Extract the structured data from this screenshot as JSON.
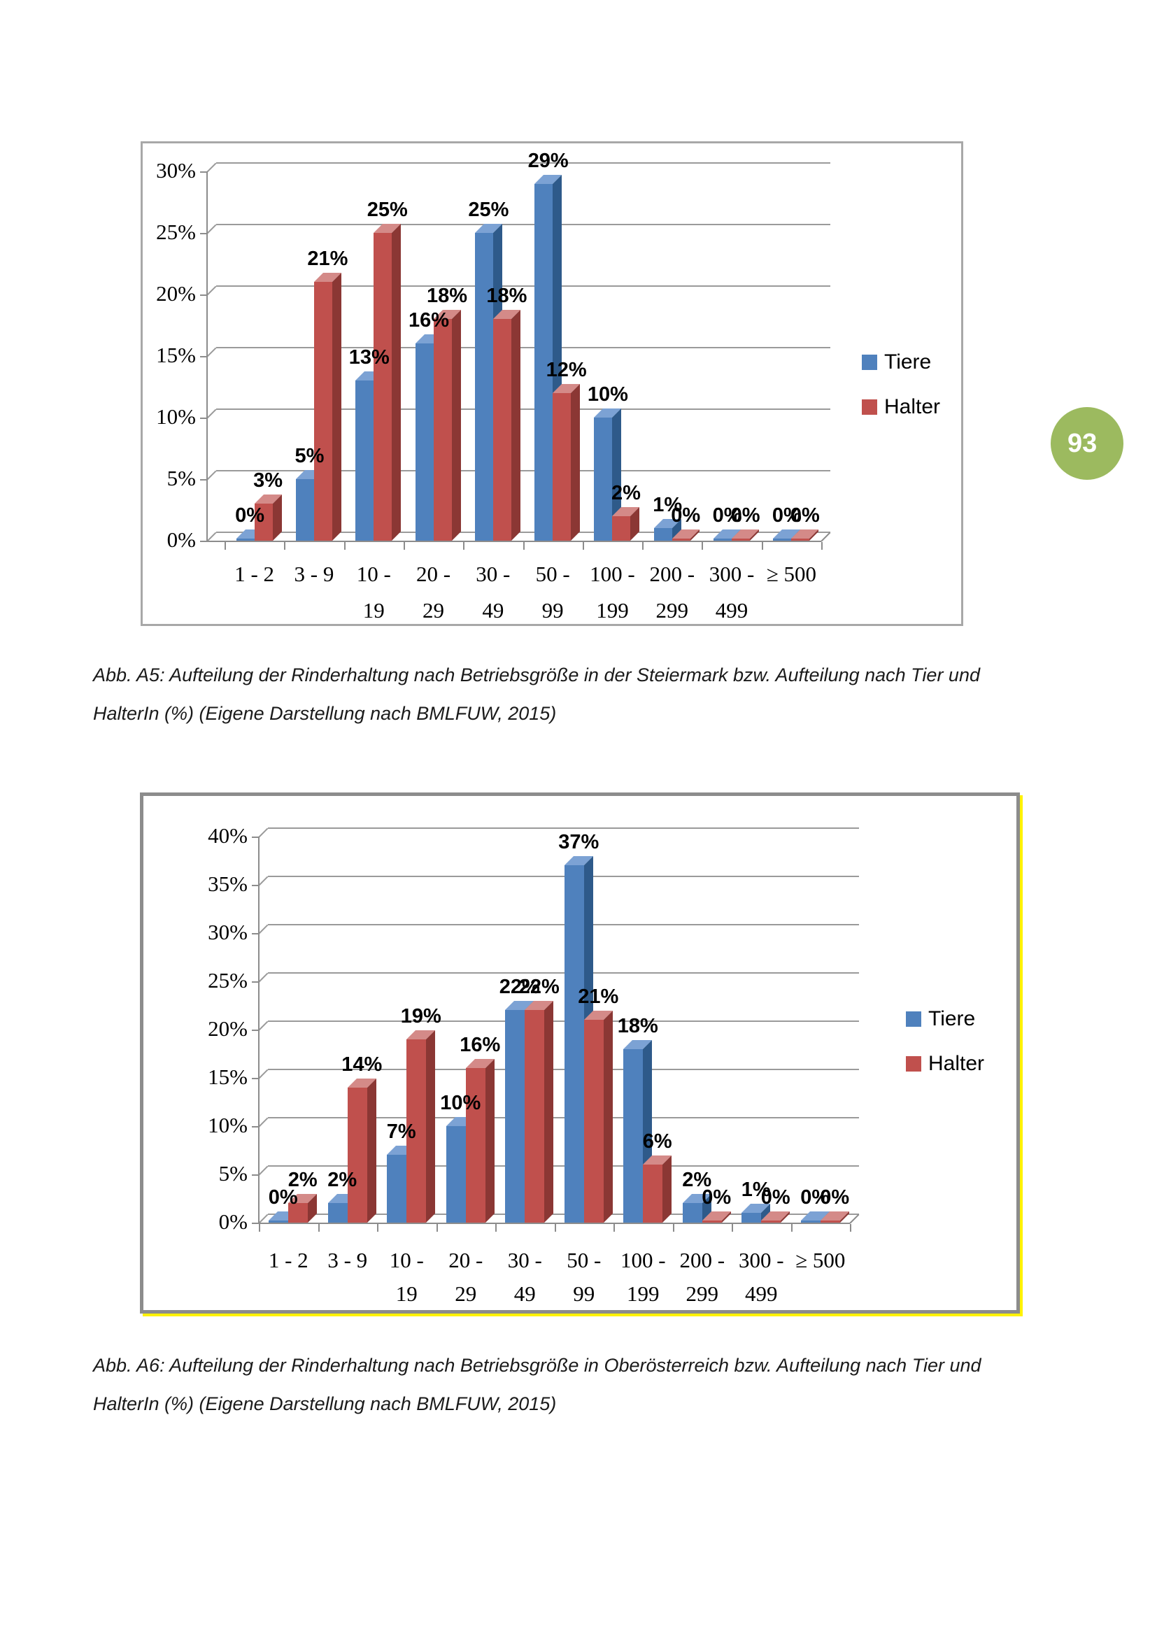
{
  "page": {
    "badge_number": "93"
  },
  "colors": {
    "tiere": "#4f81bd",
    "tiere_top": "#7ca2d4",
    "tiere_side": "#2e5a8a",
    "halter": "#c0504d",
    "halter_top": "#d48a88",
    "halter_side": "#8b3734",
    "gridline": "#9a9a9a",
    "axis": "#8c8c8c",
    "chart1_border": "#a8a8a8",
    "chart2_border": "#8c8c8c",
    "chart2_accent": "#fff200",
    "badge": "#9cba5f"
  },
  "chart_data": [
    {
      "type": "bar",
      "region": "Steiermark",
      "categories": [
        "1 - 2",
        "3 - 9",
        "10 - 19",
        "20 - 29",
        "30 - 49",
        "50 - 99",
        "100 - 199",
        "200 - 299",
        "300 - 499",
        "≥ 500"
      ],
      "categories_line1": [
        "1 - 2",
        "3 - 9",
        "10 -",
        "20 -",
        "30 -",
        "50 -",
        "100 -",
        "200 -",
        "300 -",
        "≥ 500"
      ],
      "categories_line2": [
        "",
        "",
        "19",
        "29",
        "49",
        "99",
        "199",
        "299",
        "499",
        ""
      ],
      "series": [
        {
          "name": "Tiere",
          "values": [
            0,
            5,
            13,
            16,
            25,
            29,
            10,
            1,
            0,
            0
          ]
        },
        {
          "name": "Halter",
          "values": [
            3,
            21,
            25,
            18,
            18,
            12,
            2,
            0,
            0,
            0
          ]
        }
      ],
      "data_labels": [
        [
          "0%",
          "5%",
          "13%",
          "16%",
          "25%",
          "29%",
          "10%",
          "1%",
          "0%",
          "0%"
        ],
        [
          "3%",
          "21%",
          "25%",
          "18%",
          "18%",
          "12%",
          "2%",
          "0%",
          "0%",
          "0%"
        ]
      ],
      "y_tick_labels": [
        "0%",
        "5%",
        "10%",
        "15%",
        "20%",
        "25%",
        "30%"
      ],
      "ylim": [
        0,
        30
      ],
      "ystep": 5,
      "xlabel": "",
      "ylabel": "",
      "grid": true,
      "legend_position": "right",
      "legend_entries": [
        "Tiere",
        "Halter"
      ],
      "caption_line1": "Abb. A5: Aufteilung der Rinderhaltung nach Betriebsgröße in der Steiermark bzw. Aufteilung nach Tier und",
      "caption_line2": "HalterIn (%) (Eigene Darstellung nach BMLFUW, 2015)"
    },
    {
      "type": "bar",
      "region": "Oberösterreich",
      "categories": [
        "1 - 2",
        "3 - 9",
        "10 - 19",
        "20 - 29",
        "30 - 49",
        "50 - 99",
        "100 - 199",
        "200 - 299",
        "300 - 499",
        "≥ 500"
      ],
      "categories_line1": [
        "1 - 2",
        "3 - 9",
        "10 -",
        "20 -",
        "30 -",
        "50 -",
        "100 -",
        "200 -",
        "300 -",
        "≥ 500"
      ],
      "categories_line2": [
        "",
        "",
        "19",
        "29",
        "49",
        "99",
        "199",
        "299",
        "499",
        ""
      ],
      "series": [
        {
          "name": "Tiere",
          "values": [
            0,
            2,
            7,
            10,
            22,
            37,
            18,
            2,
            1,
            0
          ]
        },
        {
          "name": "Halter",
          "values": [
            2,
            14,
            19,
            16,
            22,
            21,
            6,
            0,
            0,
            0
          ]
        }
      ],
      "data_labels": [
        [
          "0%",
          "2%",
          "7%",
          "10%",
          "22%",
          "37%",
          "18%",
          "2%",
          "1%",
          "0%"
        ],
        [
          "2%",
          "14%",
          "19%",
          "16%",
          "22%",
          "21%",
          "6%",
          "0%",
          "0%",
          "0%"
        ]
      ],
      "y_tick_labels": [
        "0%",
        "5%",
        "10%",
        "15%",
        "20%",
        "25%",
        "30%",
        "35%",
        "40%"
      ],
      "ylim": [
        0,
        40
      ],
      "ystep": 5,
      "xlabel": "",
      "ylabel": "",
      "grid": true,
      "legend_position": "right",
      "legend_entries": [
        "Tiere",
        "Halter"
      ],
      "caption_line1": "Abb. A6: Aufteilung der Rinderhaltung nach Betriebsgröße in Oberösterreich bzw. Aufteilung nach Tier und",
      "caption_line2": "HalterIn (%) (Eigene Darstellung nach BMLFUW, 2015)"
    }
  ]
}
